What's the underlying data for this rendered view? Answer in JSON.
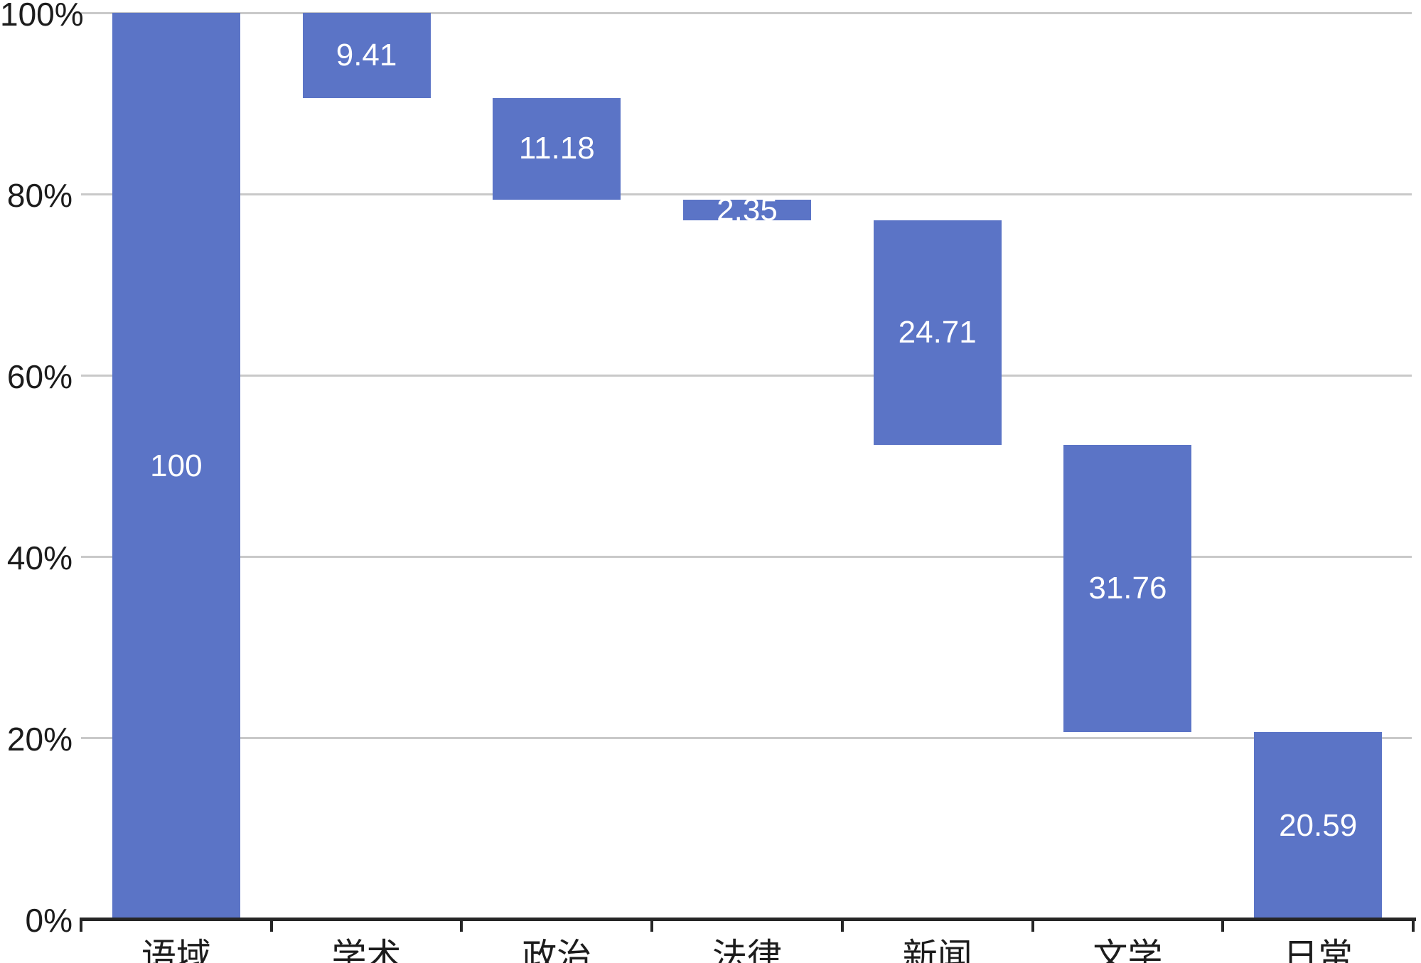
{
  "chart_data": {
    "type": "bar",
    "subtype": "waterfall",
    "title": "",
    "categories": [
      "语域",
      "学术",
      "政治",
      "法律",
      "新闻",
      "文学",
      "日常"
    ],
    "values": [
      100,
      9.41,
      11.18,
      2.35,
      24.71,
      31.76,
      20.59
    ],
    "segments": [
      {
        "category": "语域",
        "value": 100,
        "value_label": "100",
        "from": 0,
        "to": 100
      },
      {
        "category": "学术",
        "value": 9.41,
        "value_label": "9.41",
        "from": 90.59,
        "to": 100
      },
      {
        "category": "政治",
        "value": 11.18,
        "value_label": "11.18",
        "from": 79.41,
        "to": 90.59
      },
      {
        "category": "法律",
        "value": 2.35,
        "value_label": "2.35",
        "from": 77.06,
        "to": 79.41
      },
      {
        "category": "新闻",
        "value": 24.71,
        "value_label": "24.71",
        "from": 52.35,
        "to": 77.06
      },
      {
        "category": "文学",
        "value": 31.76,
        "value_label": "31.76",
        "from": 20.59,
        "to": 52.35
      },
      {
        "category": "日常",
        "value": 20.59,
        "value_label": "20.59",
        "from": 0,
        "to": 20.59
      }
    ],
    "y_ticks": [
      {
        "pct": 0,
        "label": "0%"
      },
      {
        "pct": 20,
        "label": "20%"
      },
      {
        "pct": 40,
        "label": "40%"
      },
      {
        "pct": 60,
        "label": "60%"
      },
      {
        "pct": 80,
        "label": "80%"
      },
      {
        "pct": 100,
        "label": "100%"
      }
    ],
    "xlabel": "",
    "ylabel": "",
    "ylim": [
      0,
      100
    ],
    "grid": true,
    "legend": "none",
    "colors": {
      "bar": "#5B74C6",
      "bar_label": "#FFFFFF",
      "gridline": "#C9C9C9",
      "axis": "#262626",
      "text": "#1C1C1C",
      "background": "#FFFFFF"
    }
  }
}
